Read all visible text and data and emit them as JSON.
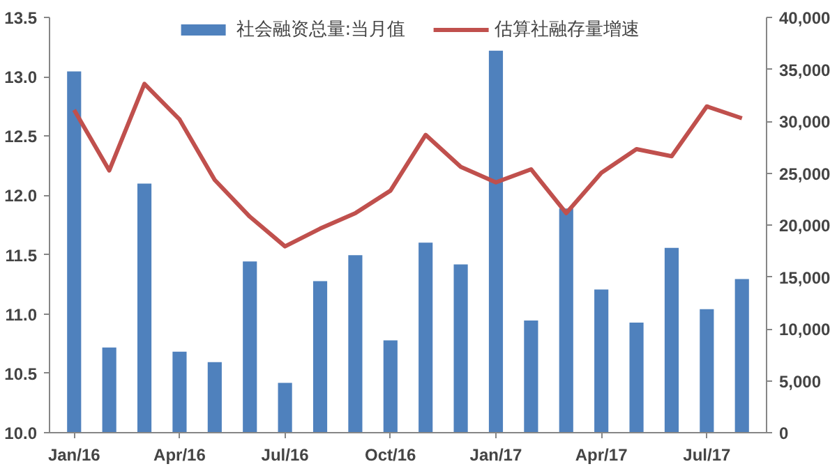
{
  "chart_data": {
    "type": "bar",
    "categories": [
      "Jan/16",
      null,
      null,
      "Apr/16",
      null,
      null,
      "Jul/16",
      null,
      null,
      "Oct/16",
      null,
      null,
      "Jan/17",
      null,
      null,
      "Apr/17",
      null,
      null,
      "Jul/17",
      null
    ],
    "series": [
      {
        "name": "社会融资总量:当月值",
        "axis": "y2",
        "color": "#4f81bd",
        "values": [
          34800,
          8200,
          24000,
          7800,
          6800,
          16500,
          4800,
          14600,
          17100,
          8900,
          18300,
          16200,
          36800,
          10800,
          21600,
          13800,
          10600,
          17800,
          11900,
          14800
        ]
      },
      {
        "name": "估算社融存量增速",
        "type": "line",
        "axis": "y",
        "color": "#c0504d",
        "values": [
          12.72,
          12.21,
          12.94,
          12.64,
          12.13,
          11.82,
          11.57,
          11.72,
          11.85,
          12.04,
          12.51,
          12.24,
          12.11,
          12.22,
          11.85,
          12.19,
          12.39,
          12.33,
          12.75,
          12.65
        ]
      }
    ],
    "ylim": [
      10.0,
      13.5
    ],
    "yticks": [
      {
        "value": 10,
        "label": "10.0"
      },
      10.5,
      {
        "value": 11,
        "label": "11.0"
      },
      11.5,
      {
        "value": 12,
        "label": "12.0"
      },
      12.5,
      {
        "value": 13,
        "label": "13.0"
      },
      13.5
    ],
    "y2lim": [
      0,
      40000
    ],
    "y2ticks": [
      0,
      {
        "value": 5000,
        "label": "5,000"
      },
      {
        "value": 10000,
        "label": "10,000"
      },
      {
        "value": 15000,
        "label": "15,000"
      },
      {
        "value": 20000,
        "label": "20,000"
      },
      {
        "value": 25000,
        "label": "25,000"
      },
      {
        "value": 30000,
        "label": "30,000"
      },
      {
        "value": 35000,
        "label": "35,000"
      },
      {
        "value": 40000,
        "label": "40,000"
      }
    ],
    "legend": "top",
    "grid": false
  }
}
